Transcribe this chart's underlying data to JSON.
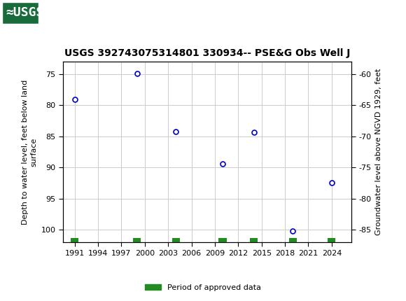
{
  "title": "USGS 392743075314801 330934-- PSE&G Obs Well J",
  "ylabel_left": "Depth to water level, feet below land\nsurface",
  "ylabel_right": "Groundwater level above NGVD 1929, feet",
  "x_years": [
    1991,
    1999,
    2004,
    2010,
    2014,
    2019,
    2024
  ],
  "y_depth": [
    79.0,
    74.9,
    84.2,
    89.4,
    84.3,
    100.2,
    92.4
  ],
  "xlim_left": 1989.5,
  "xlim_right": 2026.5,
  "ylim_top": 73.0,
  "ylim_bottom": 102.0,
  "y_left_ticks": [
    75,
    80,
    85,
    90,
    95,
    100
  ],
  "y_right_ticks": [
    -60,
    -65,
    -70,
    -75,
    -80,
    -85
  ],
  "x_ticks": [
    1991,
    1994,
    1997,
    2000,
    2003,
    2006,
    2009,
    2012,
    2015,
    2018,
    2021,
    2024
  ],
  "marker_color": "#0000cc",
  "marker_facecolor": "#ffffff",
  "grid_color": "#cccccc",
  "bg_color": "#ffffff",
  "header_bg": "#1a6b3c",
  "legend_label": "Period of approved data",
  "legend_color": "#228B22",
  "approved_bars_x": [
    1991,
    1999,
    2004,
    2010,
    2014,
    2019,
    2024
  ],
  "font_name": "DejaVu Sans"
}
